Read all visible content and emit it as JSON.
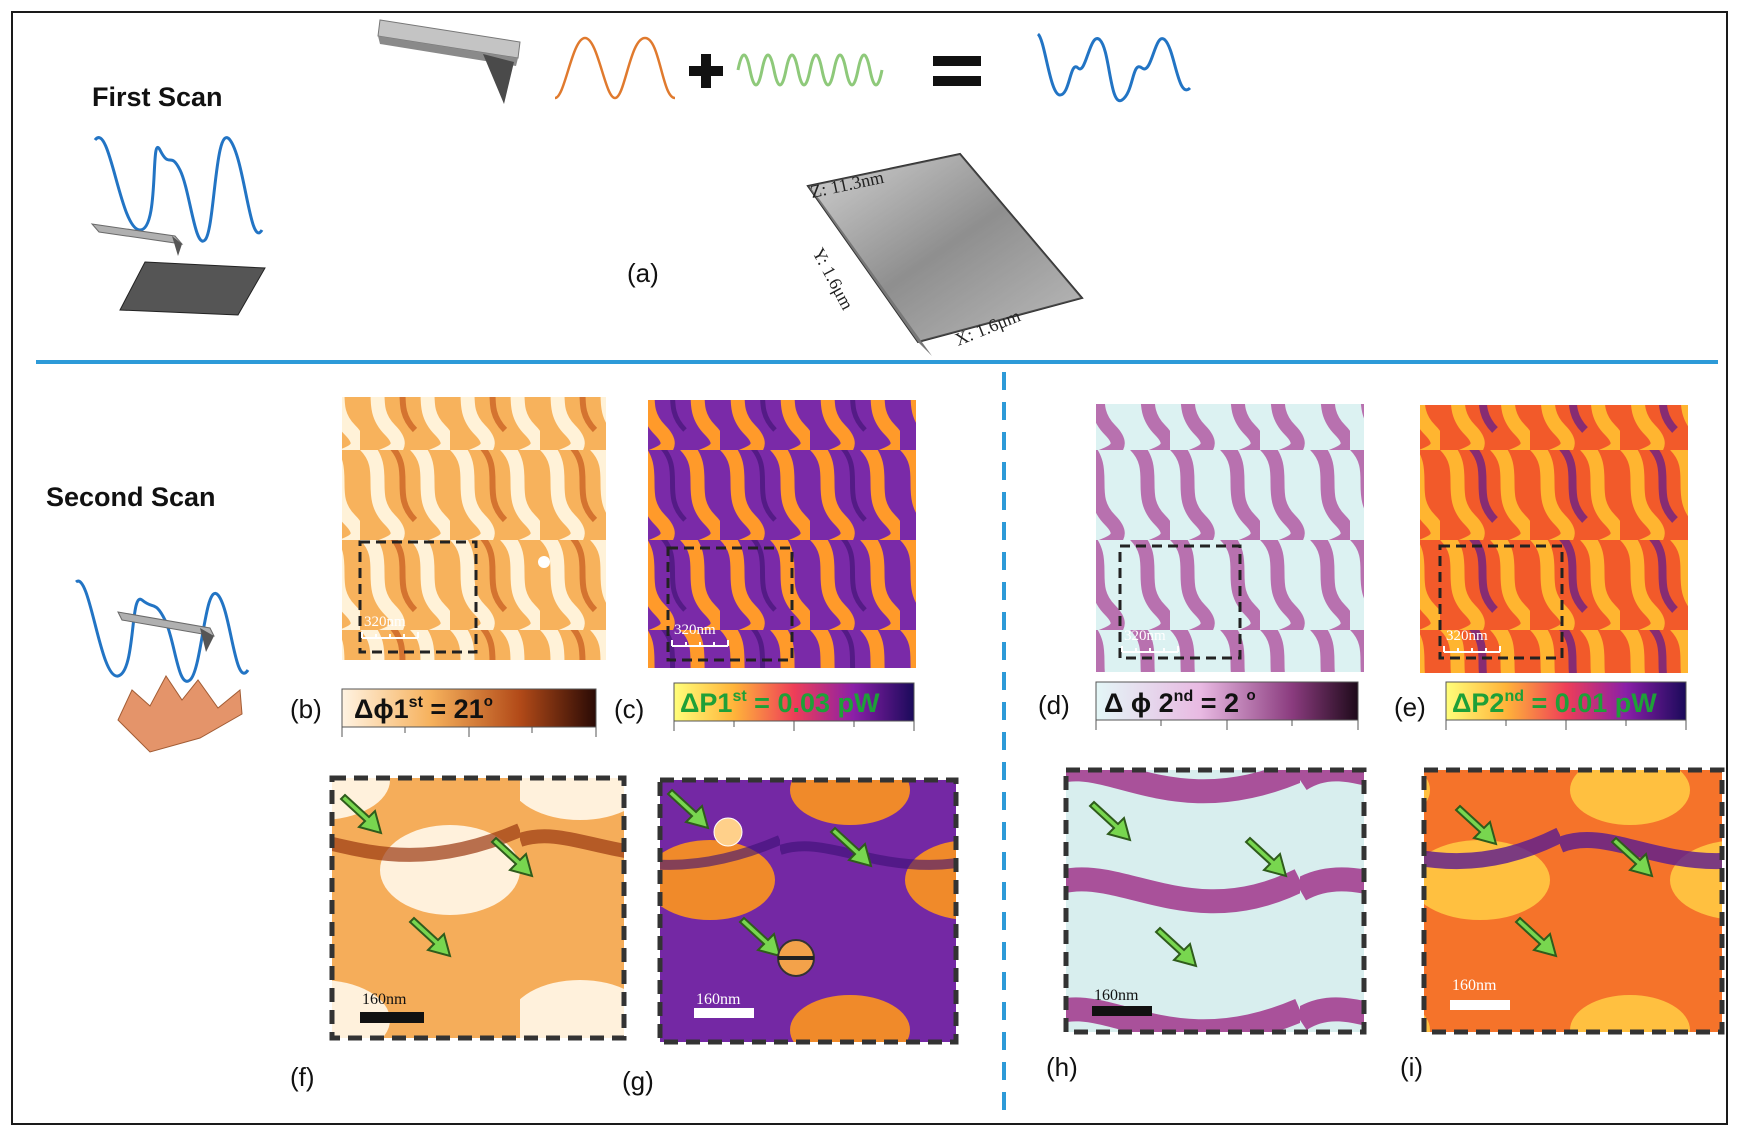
{
  "sections": {
    "first_scan": "First Scan",
    "second_scan": "Second Scan"
  },
  "panel_a": {
    "label": "(a)",
    "axis_z": "Z: 11.3nm",
    "axis_y": "Y: 1.6μm",
    "axis_x": "X: 1.6μm"
  },
  "panels": {
    "b": {
      "label": "(b)",
      "scale": "320nm",
      "cbar": {
        "sym": "Δϕ1",
        "sup": "st",
        "rest": " = 21",
        "deg": "o"
      }
    },
    "c": {
      "label": "(c)",
      "scale": "320nm",
      "cbar": {
        "sym": "ΔP1",
        "sup": "st",
        "rest": " = 0.03 pW"
      }
    },
    "d": {
      "label": "(d)",
      "scale": "320nm",
      "cbar": {
        "sym": "Δ ϕ 2",
        "sup": "nd",
        "rest": " = 2 ",
        "deg": "o"
      }
    },
    "e": {
      "label": "(e)",
      "scale": "320nm",
      "cbar": {
        "sym": "ΔP2",
        "sup": "nd",
        "rest": " = 0.01 pW"
      }
    },
    "f": {
      "label": "(f)",
      "scale": "160nm"
    },
    "g": {
      "label": "(g)",
      "scale": "160nm"
    },
    "h": {
      "label": "(h)",
      "scale": "160nm"
    },
    "i": {
      "label": "(i)",
      "scale": "160nm"
    }
  },
  "colors": {
    "frame": "#1a1a1a",
    "divider": "#2d9ad8",
    "wave_blue": "#2274c4",
    "wave_orange": "#e07a2e",
    "wave_green": "#8ec97a",
    "arrow_green": "#78d64f"
  }
}
